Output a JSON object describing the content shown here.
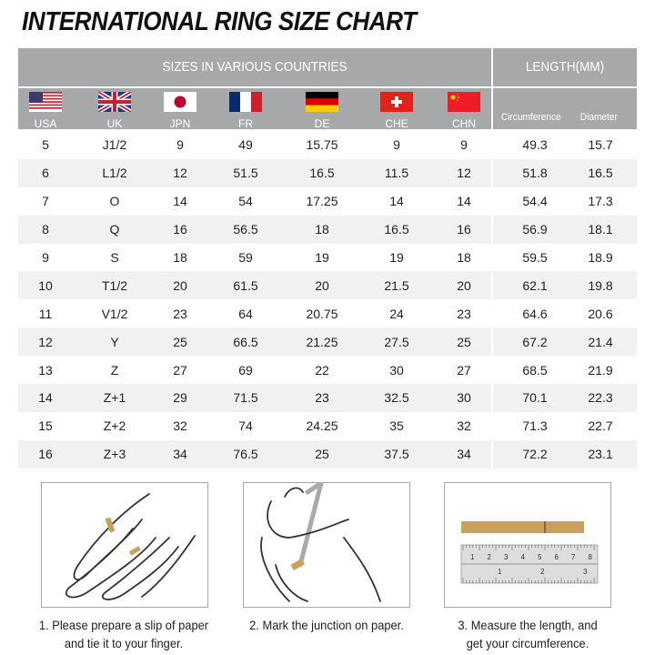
{
  "title": "INTERNATIONAL RING SIZE CHART",
  "header": {
    "sizes_title": "SIZES IN VARIOUS COUNTRIES",
    "length_title": "LENGTH(MM)",
    "countries": [
      {
        "code": "USA",
        "flag": "us-flag"
      },
      {
        "code": "UK",
        "flag": "uk-flag"
      },
      {
        "code": "JPN",
        "flag": "japan-flag"
      },
      {
        "code": "FR",
        "flag": "france-flag"
      },
      {
        "code": "DE",
        "flag": "germany-flag"
      },
      {
        "code": "CHE",
        "flag": "switzerland-flag"
      },
      {
        "code": "CHN",
        "flag": "china-flag"
      }
    ],
    "length_cols": [
      "Circumference",
      "Diameter"
    ]
  },
  "rows": [
    [
      "5",
      "J1/2",
      "9",
      "49",
      "15.75",
      "9",
      "9",
      "49.3",
      "15.7"
    ],
    [
      "6",
      "L1/2",
      "12",
      "51.5",
      "16.5",
      "11.5",
      "12",
      "51.8",
      "16.5"
    ],
    [
      "7",
      "O",
      "14",
      "54",
      "17.25",
      "14",
      "14",
      "54.4",
      "17.3"
    ],
    [
      "8",
      "Q",
      "16",
      "56.5",
      "18",
      "16.5",
      "16",
      "56.9",
      "18.1"
    ],
    [
      "9",
      "S",
      "18",
      "59",
      "19",
      "19",
      "18",
      "59.5",
      "18.9"
    ],
    [
      "10",
      "T1/2",
      "20",
      "61.5",
      "20",
      "21.5",
      "20",
      "62.1",
      "19.8"
    ],
    [
      "11",
      "V1/2",
      "23",
      "64",
      "20.75",
      "24",
      "23",
      "64.6",
      "20.6"
    ],
    [
      "12",
      "Y",
      "25",
      "66.5",
      "21.25",
      "27.5",
      "25",
      "67.2",
      "21.4"
    ],
    [
      "13",
      "Z",
      "27",
      "69",
      "22",
      "30",
      "27",
      "68.5",
      "21.9"
    ],
    [
      "14",
      "Z+1",
      "29",
      "71.5",
      "23",
      "32.5",
      "30",
      "70.1",
      "22.3"
    ],
    [
      "15",
      "Z+2",
      "32",
      "74",
      "24.25",
      "35",
      "32",
      "71.3",
      "22.7"
    ],
    [
      "16",
      "Z+3",
      "34",
      "76.5",
      "25",
      "37.5",
      "34",
      "72.2",
      "23.1"
    ]
  ],
  "steps": [
    {
      "line1": "1. Please prepare a slip of paper",
      "line2": "and tie it to your finger."
    },
    {
      "line1": "2. Mark the junction on paper.",
      "line2": ""
    },
    {
      "line1": "3. Measure the length, and",
      "line2": "get your circumference."
    }
  ],
  "ruler": {
    "top_marks": [
      "1",
      "2",
      "3",
      "4",
      "5",
      "6",
      "7",
      "8"
    ],
    "bottom_marks": [
      "1",
      "2",
      "3"
    ]
  },
  "colors": {
    "header_bg": "#a7a8aa",
    "stripe": "#f1f1f1",
    "paper": "#c9a25a"
  }
}
